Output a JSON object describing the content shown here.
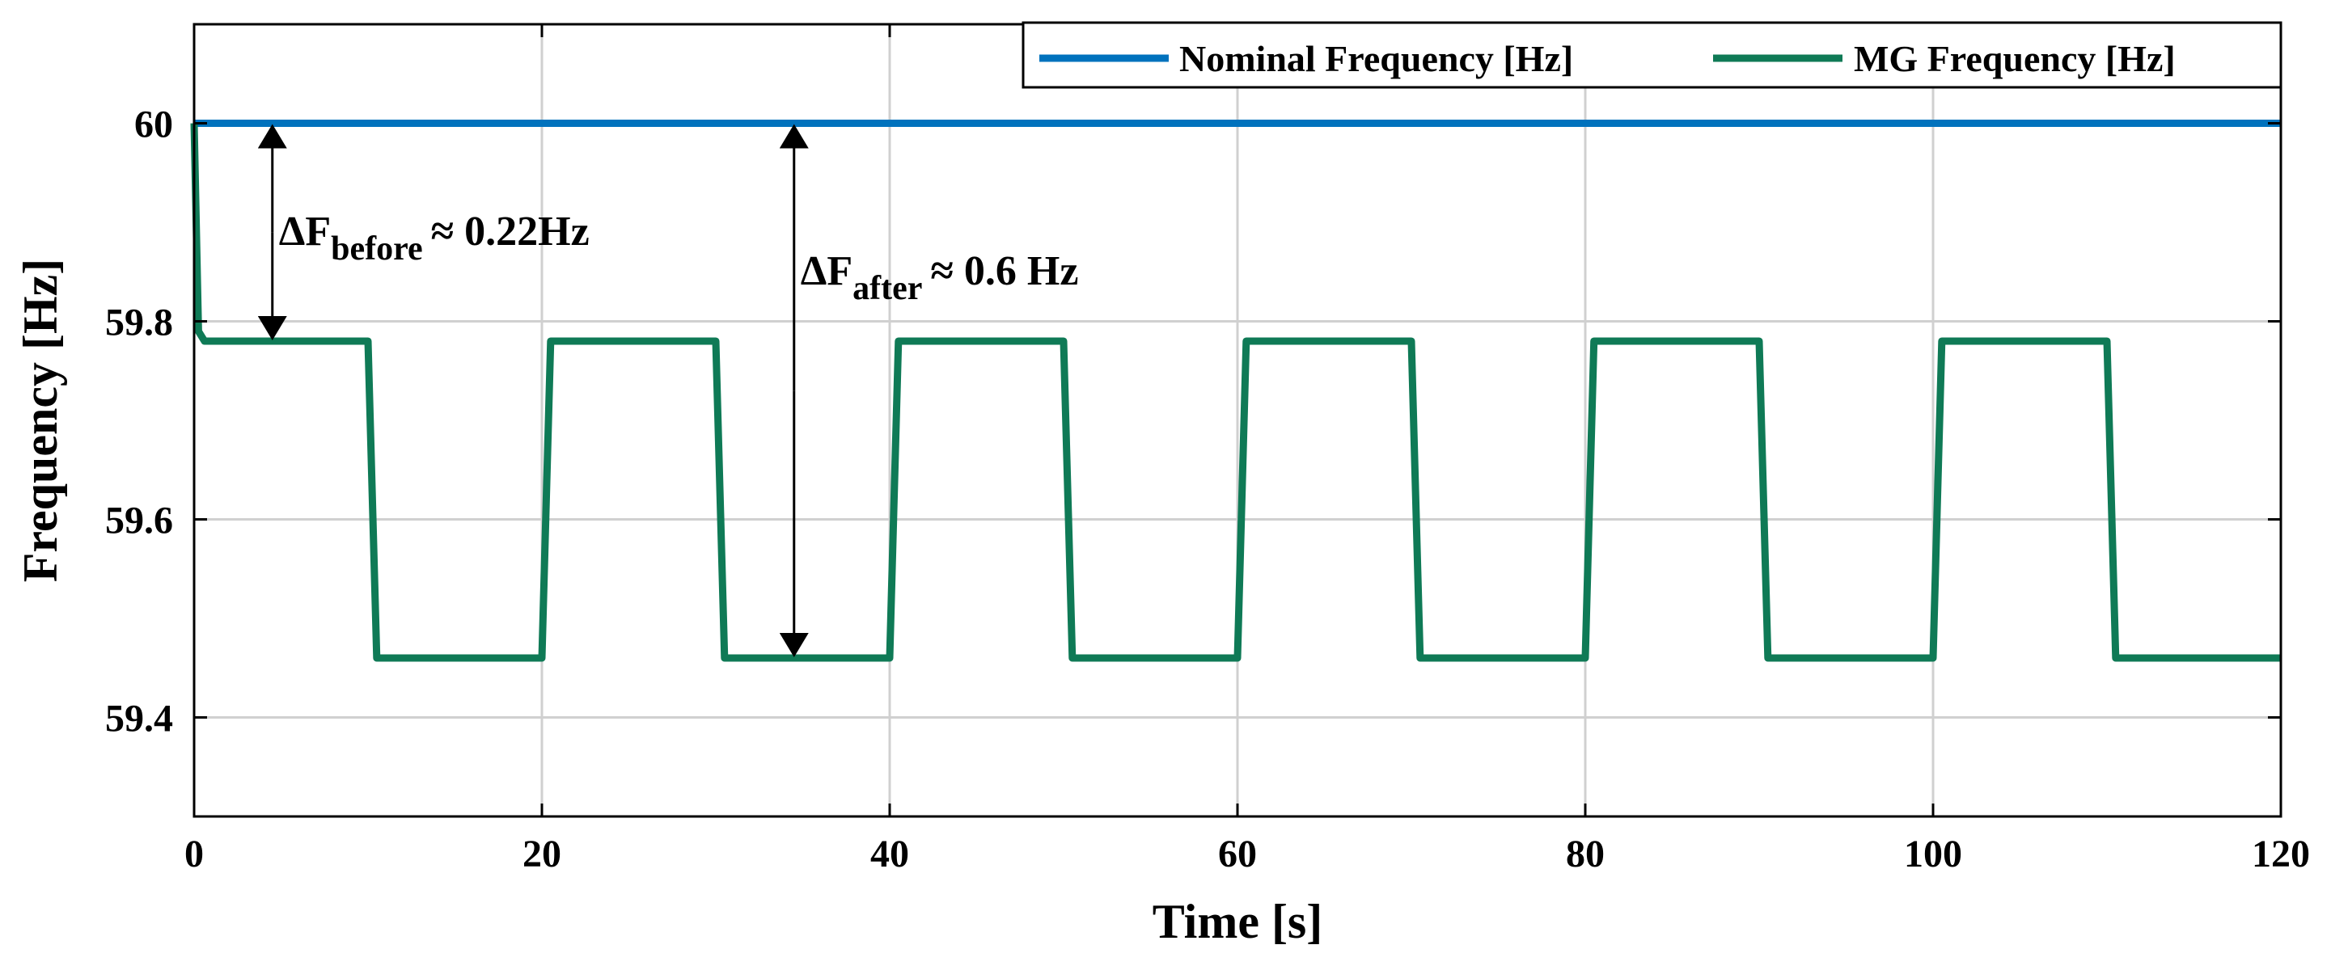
{
  "chart_data": {
    "type": "line",
    "xlabel": "Time [s]",
    "ylabel": "Frequency [Hz]",
    "xlim": [
      0,
      120
    ],
    "ylim": [
      59.3,
      60.1
    ],
    "xticks": [
      0,
      20,
      40,
      60,
      80,
      100,
      120
    ],
    "yticks": [
      59.4,
      59.6,
      59.8,
      60
    ],
    "xtick_labels": [
      "0",
      "20",
      "40",
      "60",
      "80",
      "100",
      "120"
    ],
    "ytick_labels": [
      "59.4",
      "59.6",
      "59.8",
      "60"
    ],
    "grid": true,
    "legend_position": "top-right",
    "series": [
      {
        "name": "Nominal Frequency [Hz]",
        "color": "#0072BD",
        "x": [
          0,
          120
        ],
        "y": [
          60,
          60
        ]
      },
      {
        "name": "MG Frequency [Hz]",
        "color": "#0F7A56",
        "x": [
          0,
          0.25,
          0.6,
          10,
          10.5,
          20,
          20.5,
          30,
          30.5,
          40,
          40.5,
          50,
          50.5,
          60,
          60.5,
          70,
          70.5,
          80,
          80.5,
          90,
          90.5,
          100,
          100.5,
          110,
          110.5,
          120
        ],
        "y": [
          60,
          59.79,
          59.78,
          59.78,
          59.46,
          59.46,
          59.78,
          59.78,
          59.46,
          59.46,
          59.78,
          59.78,
          59.46,
          59.46,
          59.78,
          59.78,
          59.46,
          59.46,
          59.78,
          59.78,
          59.46,
          59.46,
          59.78,
          59.78,
          59.46,
          59.46
        ]
      }
    ],
    "annotations": [
      {
        "name": "delta-f-before",
        "delta": "ΔF",
        "subscript": "before",
        "text": "≈ 0.22Hz",
        "arrow_x": 4.5,
        "arrow_y": [
          60,
          59.78
        ]
      },
      {
        "name": "delta-f-after",
        "delta": "ΔF",
        "subscript": "after",
        "text": "≈ 0.6 Hz",
        "arrow_x": 34.5,
        "arrow_y": [
          60,
          59.46
        ]
      }
    ]
  }
}
